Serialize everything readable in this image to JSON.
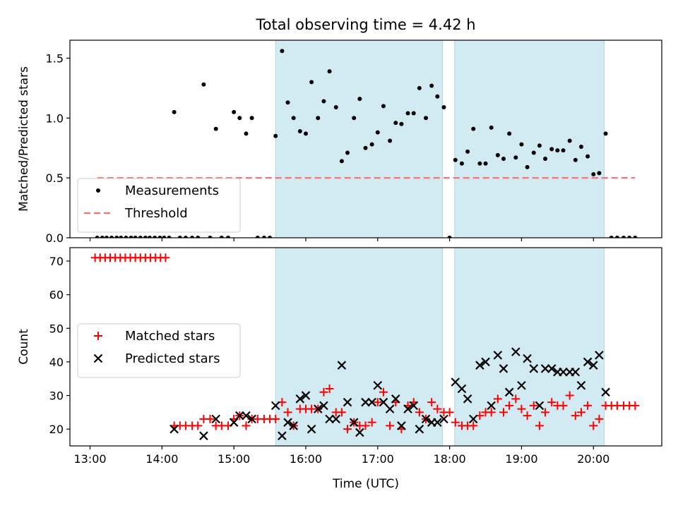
{
  "chart_data": {
    "title": "Total observing time = 4.42 h",
    "xlabel": "Time (UTC)",
    "x_unit": "hours UTC (decimal)",
    "x_ticks": [
      13,
      14,
      15,
      16,
      17,
      18,
      19,
      20
    ],
    "x_tick_labels": [
      "13:00",
      "14:00",
      "15:00",
      "16:00",
      "17:00",
      "18:00",
      "19:00",
      "20:00"
    ],
    "xlim": [
      12.72,
      20.95
    ],
    "shaded_intervals": [
      [
        15.58,
        17.9
      ],
      [
        18.07,
        20.15
      ]
    ],
    "colors": {
      "shade": "#add8e6",
      "measurements": "#000000",
      "threshold": "#ff7070",
      "matched": "#ff0000",
      "predicted": "#000000"
    },
    "panels": [
      {
        "type": "scatter",
        "ylabel": "Matched/Predicted stars",
        "ylim": [
          0,
          1.65
        ],
        "y_ticks": [
          0.0,
          0.5,
          1.0,
          1.5
        ],
        "y_tick_labels": [
          "0.0",
          "0.5",
          "1.0",
          "1.5"
        ],
        "legend_position": "lower-left",
        "series": [
          {
            "name": "Measurements",
            "marker": "dot",
            "x": [
              13.1,
              13.17,
              13.23,
              13.3,
              13.37,
              13.43,
              13.5,
              13.57,
              13.63,
              13.7,
              13.77,
              13.83,
              13.9,
              13.97,
              14.03,
              14.1,
              14.17,
              14.25,
              14.33,
              14.42,
              14.5,
              14.58,
              14.67,
              14.75,
              14.83,
              14.92,
              15.0,
              15.08,
              15.17,
              15.25,
              15.33,
              15.42,
              15.5,
              15.58,
              15.67,
              15.75,
              15.83,
              15.92,
              16.0,
              16.08,
              16.17,
              16.25,
              16.33,
              16.42,
              16.5,
              16.58,
              16.67,
              16.75,
              16.83,
              16.92,
              17.0,
              17.08,
              17.17,
              17.25,
              17.33,
              17.42,
              17.5,
              17.58,
              17.67,
              17.75,
              17.83,
              17.92,
              18.0,
              18.08,
              18.17,
              18.25,
              18.33,
              18.42,
              18.5,
              18.58,
              18.67,
              18.75,
              18.83,
              18.92,
              19.0,
              19.08,
              19.17,
              19.25,
              19.33,
              19.42,
              19.5,
              19.58,
              19.67,
              19.75,
              19.83,
              19.92,
              20.0,
              20.08,
              20.17,
              20.25,
              20.33,
              20.42,
              20.5,
              20.58
            ],
            "y": [
              0,
              0,
              0,
              0,
              0,
              0,
              0,
              0,
              0,
              0,
              0,
              0,
              0,
              0,
              0,
              0,
              1.05,
              0,
              0,
              0,
              0,
              1.28,
              0,
              0.91,
              0,
              0,
              1.05,
              1.0,
              0.87,
              1.0,
              0,
              0,
              0,
              0.85,
              1.56,
              1.13,
              1.0,
              0.89,
              0.87,
              1.3,
              1.0,
              1.14,
              1.39,
              1.09,
              0.64,
              0.71,
              1.0,
              1.16,
              0.75,
              0.78,
              0.88,
              1.1,
              0.81,
              0.96,
              0.95,
              1.04,
              1.04,
              1.25,
              1.0,
              1.27,
              1.18,
              1.09,
              0,
              0.65,
              0.62,
              0.72,
              0.91,
              0.62,
              0.62,
              0.92,
              0.69,
              0.66,
              0.87,
              0.67,
              0.78,
              0.59,
              0.71,
              0.77,
              0.66,
              0.74,
              0.73,
              0.73,
              0.81,
              0.65,
              0.76,
              0.68,
              0.53,
              0.54,
              0.87,
              0,
              0,
              0,
              0,
              0
            ]
          },
          {
            "name": "Threshold",
            "type": "line",
            "style": "dashed",
            "x": [
              13.1,
              20.58
            ],
            "y": [
              0.5,
              0.5
            ]
          }
        ]
      },
      {
        "type": "scatter",
        "ylabel": "Count",
        "ylim": [
          15,
          74
        ],
        "y_ticks": [
          20,
          30,
          40,
          50,
          60,
          70
        ],
        "y_tick_labels": [
          "20",
          "30",
          "40",
          "50",
          "60",
          "70"
        ],
        "legend_position": "center-left",
        "series": [
          {
            "name": "Matched stars",
            "marker": "plus",
            "x": [
              13.07,
              13.14,
              13.21,
              13.28,
              13.35,
              13.42,
              13.49,
              13.56,
              13.63,
              13.7,
              13.77,
              13.84,
              13.91,
              13.98,
              14.05,
              14.17,
              14.25,
              14.33,
              14.42,
              14.5,
              14.58,
              14.67,
              14.75,
              14.83,
              14.92,
              15.0,
              15.08,
              15.17,
              15.25,
              15.33,
              15.42,
              15.5,
              15.58,
              15.67,
              15.75,
              15.83,
              15.92,
              16.0,
              16.08,
              16.17,
              16.25,
              16.33,
              16.42,
              16.5,
              16.58,
              16.67,
              16.75,
              16.83,
              16.92,
              17.0,
              17.08,
              17.17,
              17.25,
              17.33,
              17.42,
              17.5,
              17.58,
              17.67,
              17.75,
              17.83,
              17.92,
              18.0,
              18.08,
              18.17,
              18.25,
              18.33,
              18.42,
              18.5,
              18.58,
              18.67,
              18.75,
              18.83,
              18.92,
              19.0,
              19.08,
              19.17,
              19.25,
              19.33,
              19.42,
              19.5,
              19.58,
              19.67,
              19.75,
              19.83,
              19.92,
              20.0,
              20.08,
              20.17,
              20.25,
              20.33,
              20.42,
              20.5,
              20.58
            ],
            "y": [
              71,
              71,
              71,
              71,
              71,
              71,
              71,
              71,
              71,
              71,
              71,
              71,
              71,
              71,
              71,
              21,
              21,
              21,
              21,
              21,
              23,
              23,
              21,
              21,
              21,
              23,
              24,
              21,
              23,
              23,
              23,
              23,
              23,
              28,
              25,
              21,
              26,
              26,
              26,
              26,
              31,
              32,
              25,
              25,
              20,
              22,
              21,
              21,
              22,
              28,
              31,
              21,
              28,
              20,
              27,
              28,
              25,
              23,
              28,
              26,
              25,
              25,
              22,
              21,
              21,
              21,
              24,
              25,
              25,
              29,
              25,
              27,
              29,
              26,
              24,
              27,
              21,
              25,
              28,
              27,
              27,
              30,
              24,
              25,
              27,
              21,
              23,
              27,
              27,
              27,
              27,
              27,
              27
            ]
          },
          {
            "name": "Predicted stars",
            "marker": "x",
            "x": [
              14.17,
              14.58,
              14.75,
              15.0,
              15.08,
              15.17,
              15.25,
              15.58,
              15.67,
              15.75,
              15.83,
              15.92,
              16.0,
              16.08,
              16.17,
              16.25,
              16.33,
              16.42,
              16.5,
              16.58,
              16.67,
              16.75,
              16.83,
              16.92,
              17.0,
              17.08,
              17.17,
              17.25,
              17.33,
              17.42,
              17.5,
              17.58,
              17.67,
              17.75,
              17.83,
              17.92,
              18.08,
              18.17,
              18.25,
              18.33,
              18.42,
              18.5,
              18.58,
              18.67,
              18.75,
              18.83,
              18.92,
              19.0,
              19.08,
              19.17,
              19.25,
              19.33,
              19.42,
              19.5,
              19.58,
              19.67,
              19.75,
              19.83,
              19.92,
              20.0,
              20.08,
              20.17
            ],
            "y": [
              20,
              18,
              23,
              22,
              24,
              24,
              23,
              27,
              18,
              22,
              21,
              29,
              30,
              20,
              26,
              27,
              23,
              23,
              39,
              28,
              22,
              19,
              28,
              28,
              33,
              28,
              26,
              29,
              21,
              26,
              27,
              20,
              23,
              22,
              22,
              23,
              34,
              32,
              29,
              23,
              39,
              40,
              27,
              42,
              38,
              31,
              43,
              33,
              41,
              38,
              27,
              38,
              38,
              37,
              37,
              37,
              37,
              33,
              40,
              39,
              42,
              31
            ]
          }
        ]
      }
    ]
  }
}
